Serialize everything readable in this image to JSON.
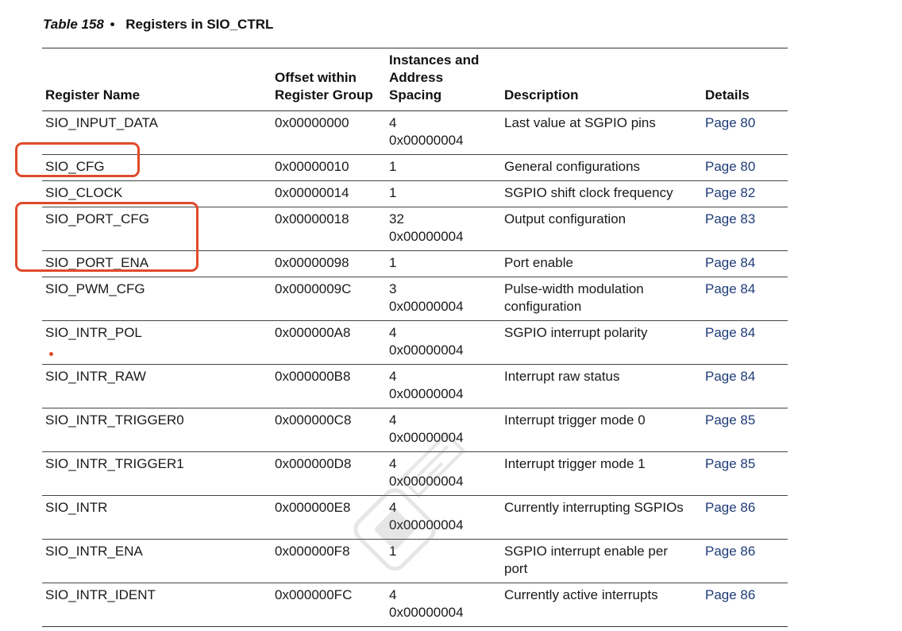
{
  "caption": {
    "table_number": "Table 158",
    "bullet": "•",
    "title": "Registers in SIO_CTRL"
  },
  "headers": {
    "register_name": "Register Name",
    "offset": [
      "Offset within",
      "Register Group"
    ],
    "instances": [
      "Instances and",
      "Address",
      "Spacing"
    ],
    "description": "Description",
    "details": "Details"
  },
  "rows": [
    {
      "name": "SIO_INPUT_DATA",
      "offset": "0x00000000",
      "instances": "4",
      "spacing": "0x00000004",
      "description": [
        "Last value at SGPIO pins"
      ],
      "details": "Page 80"
    },
    {
      "name": "SIO_CFG",
      "offset": "0x00000010",
      "instances": "1",
      "spacing": "",
      "description": [
        "General configurations"
      ],
      "details": "Page 80"
    },
    {
      "name": "SIO_CLOCK",
      "offset": "0x00000014",
      "instances": "1",
      "spacing": "",
      "description": [
        "SGPIO shift clock frequency"
      ],
      "details": "Page 82"
    },
    {
      "name": "SIO_PORT_CFG",
      "offset": "0x00000018",
      "instances": "32",
      "spacing": "0x00000004",
      "description": [
        "Output configuration"
      ],
      "details": "Page 83"
    },
    {
      "name": "SIO_PORT_ENA",
      "offset": "0x00000098",
      "instances": "1",
      "spacing": "",
      "description": [
        "Port enable"
      ],
      "details": "Page 84"
    },
    {
      "name": "SIO_PWM_CFG",
      "offset": "0x0000009C",
      "instances": "3",
      "spacing": "0x00000004",
      "description": [
        "Pulse-width modulation",
        "configuration"
      ],
      "details": "Page 84"
    },
    {
      "name": "SIO_INTR_POL",
      "offset": "0x000000A8",
      "instances": "4",
      "spacing": "0x00000004",
      "description": [
        "SGPIO interrupt polarity"
      ],
      "details": "Page 84"
    },
    {
      "name": "SIO_INTR_RAW",
      "offset": "0x000000B8",
      "instances": "4",
      "spacing": "0x00000004",
      "description": [
        "Interrupt raw status"
      ],
      "details": "Page 84"
    },
    {
      "name": "SIO_INTR_TRIGGER0",
      "offset": "0x000000C8",
      "instances": "4",
      "spacing": "0x00000004",
      "description": [
        "Interrupt trigger mode 0"
      ],
      "details": "Page 85"
    },
    {
      "name": "SIO_INTR_TRIGGER1",
      "offset": "0x000000D8",
      "instances": "4",
      "spacing": "0x00000004",
      "description": [
        "Interrupt trigger mode 1"
      ],
      "details": "Page 85"
    },
    {
      "name": "SIO_INTR",
      "offset": "0x000000E8",
      "instances": "4",
      "spacing": "0x00000004",
      "description": [
        "Currently interrupting SGPIOs"
      ],
      "details": "Page 86"
    },
    {
      "name": "SIO_INTR_ENA",
      "offset": "0x000000F8",
      "instances": "1",
      "spacing": "",
      "description": [
        "SGPIO interrupt enable per",
        "port"
      ],
      "details": "Page 86"
    },
    {
      "name": "SIO_INTR_IDENT",
      "offset": "0x000000FC",
      "instances": "4",
      "spacing": "0x00000004",
      "description": [
        "Currently active interrupts"
      ],
      "details": "Page 86"
    }
  ],
  "annotation_color": "#e04a2a",
  "link_color": "#1f3b78"
}
